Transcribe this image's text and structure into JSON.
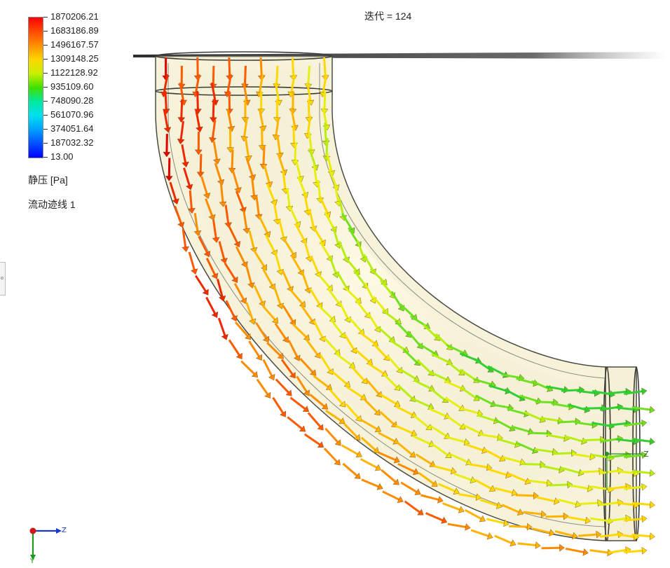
{
  "legend": {
    "title": "静压 [Pa]",
    "levels": [
      "1870206.21",
      "1683186.89",
      "1496167.57",
      "1309148.25",
      "1122128.92",
      "935109.60",
      "748090.28",
      "561070.96",
      "374051.64",
      "187032.32",
      "13.00"
    ],
    "colors": [
      "#ff0000",
      "#ff4a00",
      "#ff9000",
      "#ffd600",
      "#c8f000",
      "#40e000",
      "#00e8a0",
      "#00e0f0",
      "#00a0ff",
      "#0050ff",
      "#0000ff"
    ]
  },
  "plot_name": "流动迹线 1",
  "iteration_label": "迭代 = 124",
  "triad": {
    "z_label": "Z",
    "y_label": "Y"
  },
  "model_triad": {
    "z_label": "Z"
  },
  "pipe": {
    "fill": "#f5f2d6",
    "edge": "#4a4a44"
  }
}
